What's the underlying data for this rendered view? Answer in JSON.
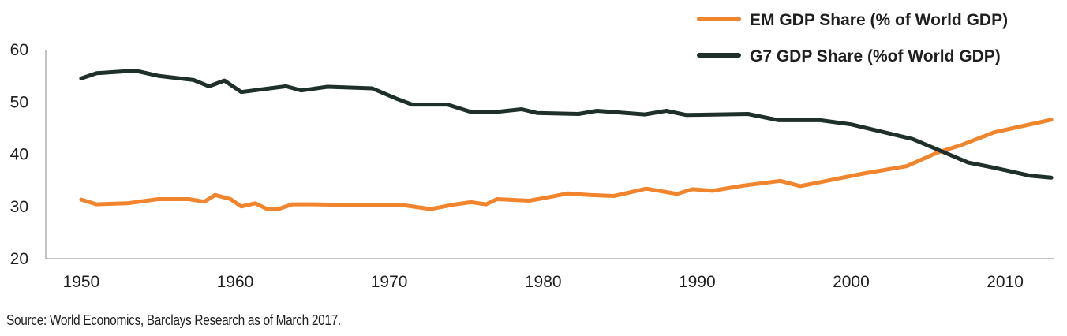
{
  "chart_data": {
    "type": "line",
    "title": "",
    "xlabel": "",
    "ylabel": "",
    "xlim": [
      1947.7,
      2013.2
    ],
    "ylim": [
      20,
      60
    ],
    "x_ticks": [
      "1950",
      "1960",
      "1970",
      "1980",
      "1990",
      "2000",
      "2010"
    ],
    "y_ticks": [
      "20",
      "30",
      "40",
      "50",
      "60"
    ],
    "grid": false,
    "legend_position": "top-right",
    "series": [
      {
        "name": "EM GDP Share (% of World GDP)",
        "color": "#f0852d",
        "points": [
          [
            1950,
            31.3
          ],
          [
            1951,
            30.4
          ],
          [
            1952,
            30.5
          ],
          [
            1953,
            30.6
          ],
          [
            1955,
            31.4
          ],
          [
            1957,
            31.4
          ],
          [
            1958,
            30.9
          ],
          [
            1958.7,
            32.2
          ],
          [
            1959.7,
            31.4
          ],
          [
            1960.4,
            30.0
          ],
          [
            1961.3,
            30.6
          ],
          [
            1962,
            29.6
          ],
          [
            1962.8,
            29.5
          ],
          [
            1963.7,
            30.4
          ],
          [
            1965,
            30.4
          ],
          [
            1967,
            30.3
          ],
          [
            1969,
            30.3
          ],
          [
            1971,
            30.2
          ],
          [
            1972.7,
            29.5
          ],
          [
            1974.3,
            30.4
          ],
          [
            1975.3,
            30.8
          ],
          [
            1976.3,
            30.4
          ],
          [
            1977,
            31.4
          ],
          [
            1979.1,
            31.1
          ],
          [
            1980.6,
            31.9
          ],
          [
            1981.6,
            32.5
          ],
          [
            1983,
            32.2
          ],
          [
            1984.6,
            32.0
          ],
          [
            1986.7,
            33.4
          ],
          [
            1988.7,
            32.4
          ],
          [
            1989.7,
            33.3
          ],
          [
            1991,
            33.0
          ],
          [
            1993,
            34.0
          ],
          [
            1995.4,
            34.9
          ],
          [
            1996.7,
            33.9
          ],
          [
            1998.6,
            35.0
          ],
          [
            2000.8,
            36.3
          ],
          [
            2003.6,
            37.7
          ],
          [
            2005.6,
            40.3
          ],
          [
            2007.2,
            41.8
          ],
          [
            2009.3,
            44.2
          ],
          [
            2013,
            46.6
          ]
        ]
      },
      {
        "name": "G7 GDP Share (%of World GDP)",
        "color": "#1f2f2a",
        "points": [
          [
            1950,
            54.5
          ],
          [
            1951,
            55.5
          ],
          [
            1953.5,
            56.0
          ],
          [
            1955,
            55.0
          ],
          [
            1957.3,
            54.2
          ],
          [
            1958.3,
            53.0
          ],
          [
            1959.3,
            54.1
          ],
          [
            1960.4,
            51.9
          ],
          [
            1961.7,
            52.4
          ],
          [
            1963.3,
            53.0
          ],
          [
            1964.3,
            52.2
          ],
          [
            1966,
            52.9
          ],
          [
            1968.9,
            52.6
          ],
          [
            1970.5,
            50.6
          ],
          [
            1971.5,
            49.5
          ],
          [
            1973.8,
            49.5
          ],
          [
            1975.4,
            48.0
          ],
          [
            1977,
            48.1
          ],
          [
            1978.6,
            48.6
          ],
          [
            1979.6,
            47.9
          ],
          [
            1982.3,
            47.7
          ],
          [
            1983.5,
            48.3
          ],
          [
            1986.6,
            47.6
          ],
          [
            1988,
            48.3
          ],
          [
            1989.3,
            47.5
          ],
          [
            1993.3,
            47.7
          ],
          [
            1995.3,
            46.5
          ],
          [
            1998,
            46.5
          ],
          [
            2000,
            45.7
          ],
          [
            2004,
            42.9
          ],
          [
            2005.6,
            40.9
          ],
          [
            2007.6,
            38.4
          ],
          [
            2009.3,
            37.4
          ],
          [
            2011.6,
            35.9
          ],
          [
            2013,
            35.5
          ]
        ]
      }
    ],
    "source": "Source: World Economics, Barclays Research as of March 2017."
  }
}
